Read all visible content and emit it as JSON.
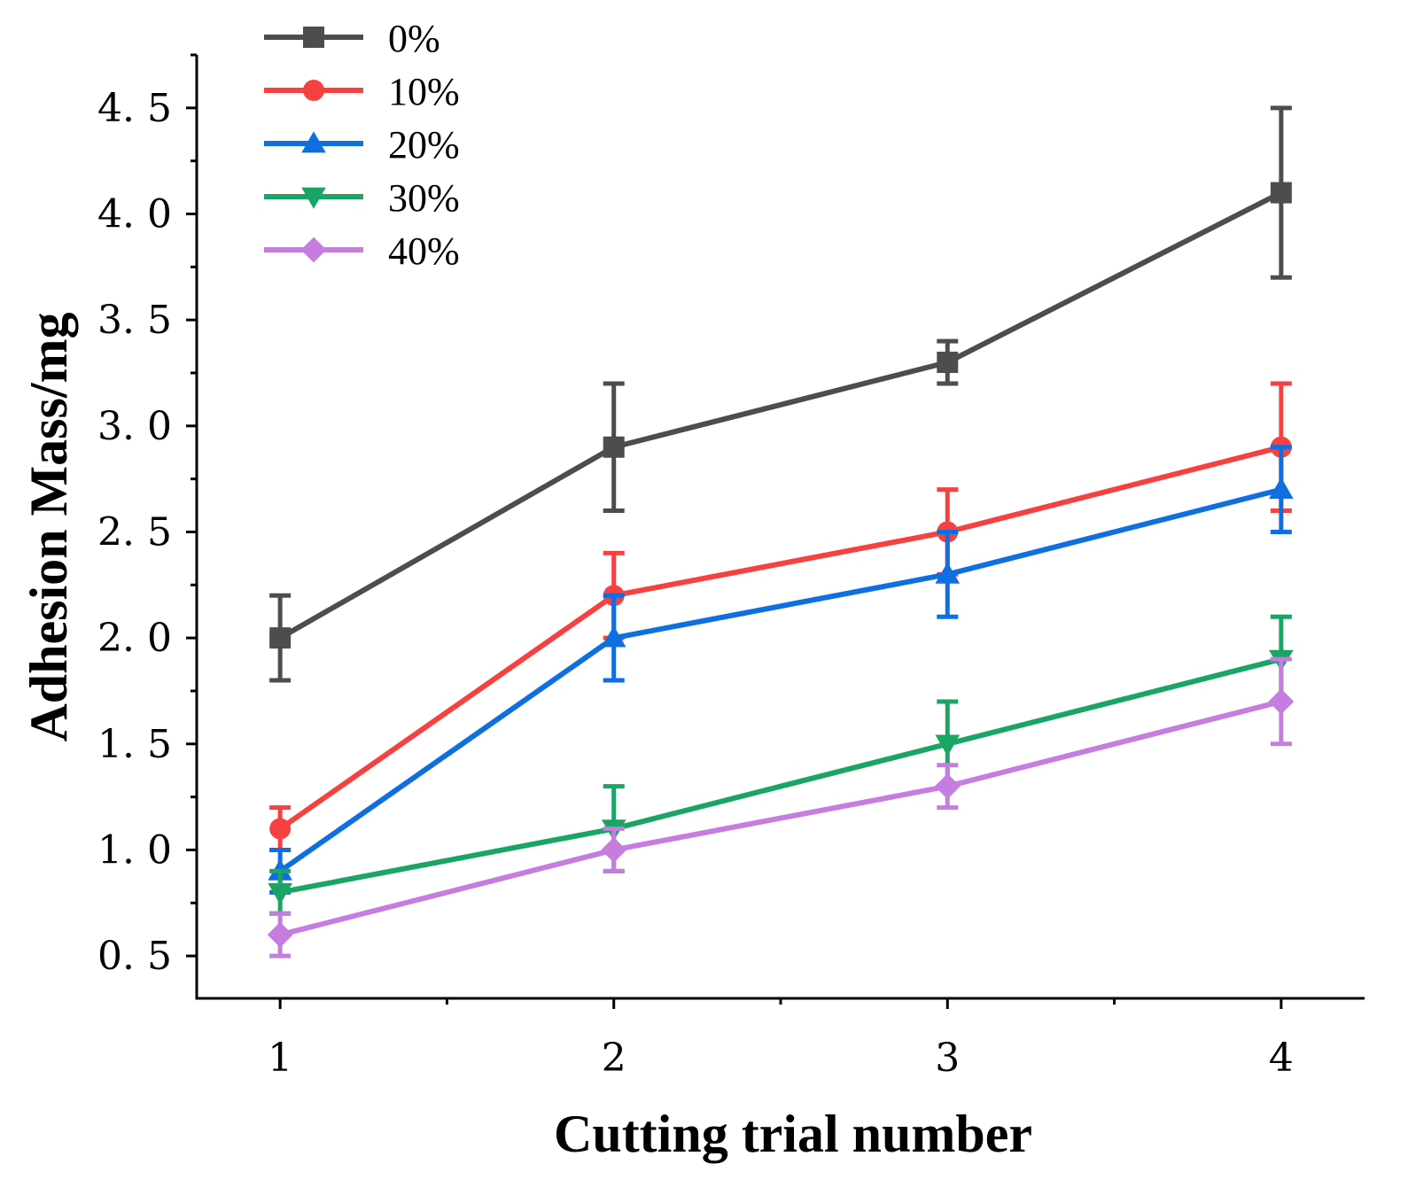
{
  "chart_data": {
    "type": "line",
    "title": "",
    "xlabel": "Cutting trial number",
    "ylabel": "Adhesion Mass/mg",
    "x": [
      1,
      2,
      3,
      4
    ],
    "x_tick_labels": [
      "1",
      "2",
      "3",
      "4"
    ],
    "xlim": [
      0.75,
      4.25
    ],
    "ylim": [
      0.3,
      4.75
    ],
    "y_ticks": [
      0.5,
      1.0,
      1.5,
      2.0,
      2.5,
      3.0,
      3.5,
      4.0,
      4.5
    ],
    "y_tick_labels": [
      "0. 5",
      "1. 0",
      "1. 5",
      "2. 0",
      "2. 5",
      "3. 0",
      "3. 5",
      "4. 0",
      "4. 5"
    ],
    "grid": false,
    "legend_position": "top-left",
    "series": [
      {
        "name": "0%",
        "marker": "square",
        "color": "#4d4d4d",
        "values": [
          2.0,
          2.9,
          3.3,
          4.1
        ],
        "errors": [
          0.2,
          0.3,
          0.1,
          0.4
        ]
      },
      {
        "name": "10%",
        "marker": "circle",
        "color": "#f74141",
        "values": [
          1.1,
          2.2,
          2.5,
          2.9
        ],
        "errors": [
          0.1,
          0.2,
          0.2,
          0.3
        ]
      },
      {
        "name": "20%",
        "marker": "triangle-up",
        "color": "#0f6ee0",
        "values": [
          0.9,
          2.0,
          2.3,
          2.7
        ],
        "errors": [
          0.1,
          0.2,
          0.2,
          0.2
        ]
      },
      {
        "name": "30%",
        "marker": "triangle-down",
        "color": "#1aa564",
        "values": [
          0.8,
          1.1,
          1.5,
          1.9
        ],
        "errors": [
          0.1,
          0.2,
          0.2,
          0.2
        ]
      },
      {
        "name": "40%",
        "marker": "diamond",
        "color": "#c57ee0",
        "values": [
          0.6,
          1.0,
          1.3,
          1.7
        ],
        "errors": [
          0.1,
          0.1,
          0.1,
          0.2
        ]
      }
    ]
  }
}
